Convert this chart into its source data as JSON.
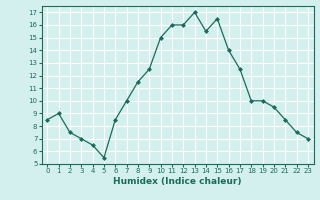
{
  "x": [
    0,
    1,
    2,
    3,
    4,
    5,
    6,
    7,
    8,
    9,
    10,
    11,
    12,
    13,
    14,
    15,
    16,
    17,
    18,
    19,
    20,
    21,
    22,
    23
  ],
  "y": [
    8.5,
    9,
    7.5,
    7,
    6.5,
    5.5,
    8.5,
    10,
    11.5,
    12.5,
    15,
    16,
    16,
    17,
    15.5,
    16.5,
    14,
    12.5,
    10,
    10,
    9.5,
    8.5,
    7.5,
    7
  ],
  "line_color": "#1a6b5a",
  "marker": "D",
  "marker_size": 2.0,
  "bg_color": "#d4f0ee",
  "grid_color": "#ffffff",
  "xlabel": "Humidex (Indice chaleur)",
  "xlim": [
    -0.5,
    23.5
  ],
  "ylim": [
    5,
    17.5
  ],
  "yticks": [
    5,
    6,
    7,
    8,
    9,
    10,
    11,
    12,
    13,
    14,
    15,
    16,
    17
  ],
  "xticks": [
    0,
    1,
    2,
    3,
    4,
    5,
    6,
    7,
    8,
    9,
    10,
    11,
    12,
    13,
    14,
    15,
    16,
    17,
    18,
    19,
    20,
    21,
    22,
    23
  ],
  "xtick_labels": [
    "0",
    "1",
    "2",
    "3",
    "4",
    "5",
    "6",
    "7",
    "8",
    "9",
    "10",
    "11",
    "12",
    "13",
    "14",
    "15",
    "16",
    "17",
    "18",
    "19",
    "20",
    "21",
    "22",
    "23"
  ]
}
